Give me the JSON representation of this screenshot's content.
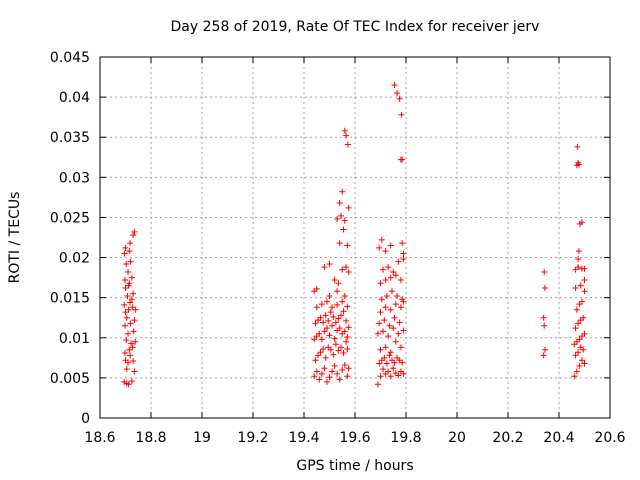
{
  "chart_data": {
    "type": "scatter",
    "title": "Day 258 of 2019, Rate Of TEC Index for receiver jerv",
    "xlabel": "GPS time / hours",
    "ylabel": "ROTI / TECUs",
    "xlim": [
      18.6,
      20.6
    ],
    "ylim": [
      0,
      0.045
    ],
    "xticks": [
      "18.6",
      "18.8",
      "19",
      "19.2",
      "19.4",
      "19.6",
      "19.8",
      "20",
      "20.2",
      "20.4",
      "20.6"
    ],
    "yticks": [
      "0",
      "0.005",
      "0.01",
      "0.015",
      "0.02",
      "0.025",
      "0.03",
      "0.035",
      "0.04",
      "0.045"
    ],
    "grid": true,
    "marker": "+",
    "color": "#ff0000",
    "series": [
      {
        "name": "ROTI",
        "points": [
          [
            18.695,
            0.0045
          ],
          [
            18.705,
            0.0043
          ],
          [
            18.712,
            0.0042
          ],
          [
            18.725,
            0.0046
          ],
          [
            18.735,
            0.0058
          ],
          [
            18.7,
            0.0072
          ],
          [
            18.71,
            0.0069
          ],
          [
            18.73,
            0.0071
          ],
          [
            18.698,
            0.0081
          ],
          [
            18.715,
            0.0085
          ],
          [
            18.728,
            0.0088
          ],
          [
            18.703,
            0.0097
          ],
          [
            18.722,
            0.0093
          ],
          [
            18.738,
            0.0095
          ],
          [
            18.71,
            0.0105
          ],
          [
            18.732,
            0.0108
          ],
          [
            18.698,
            0.0115
          ],
          [
            18.72,
            0.0118
          ],
          [
            18.705,
            0.0125
          ],
          [
            18.735,
            0.0122
          ],
          [
            18.7,
            0.0132
          ],
          [
            18.712,
            0.0135
          ],
          [
            18.728,
            0.0138
          ],
          [
            18.695,
            0.0141
          ],
          [
            18.718,
            0.0144
          ],
          [
            18.74,
            0.0135
          ],
          [
            18.708,
            0.0152
          ],
          [
            18.73,
            0.0155
          ],
          [
            18.7,
            0.0162
          ],
          [
            18.715,
            0.0168
          ],
          [
            18.698,
            0.0172
          ],
          [
            18.725,
            0.0175
          ],
          [
            18.71,
            0.0182
          ],
          [
            18.703,
            0.0192
          ],
          [
            18.72,
            0.0195
          ],
          [
            18.696,
            0.0205
          ],
          [
            18.715,
            0.0208
          ],
          [
            18.7,
            0.0212
          ],
          [
            18.718,
            0.0218
          ],
          [
            18.73,
            0.0228
          ],
          [
            18.735,
            0.0232
          ],
          [
            18.712,
            0.0165
          ],
          [
            18.725,
            0.0148
          ],
          [
            18.705,
            0.0061
          ],
          [
            18.718,
            0.0078
          ],
          [
            19.44,
            0.0052
          ],
          [
            19.45,
            0.0058
          ],
          [
            19.46,
            0.0048
          ],
          [
            19.47,
            0.0055
          ],
          [
            19.48,
            0.0062
          ],
          [
            19.49,
            0.0045
          ],
          [
            19.5,
            0.0051
          ],
          [
            19.51,
            0.0058
          ],
          [
            19.52,
            0.0065
          ],
          [
            19.53,
            0.0055
          ],
          [
            19.54,
            0.0048
          ],
          [
            19.55,
            0.006
          ],
          [
            19.56,
            0.0066
          ],
          [
            19.57,
            0.0052
          ],
          [
            19.575,
            0.0062
          ],
          [
            19.445,
            0.0072
          ],
          [
            19.455,
            0.0078
          ],
          [
            19.465,
            0.0082
          ],
          [
            19.475,
            0.0086
          ],
          [
            19.485,
            0.0075
          ],
          [
            19.495,
            0.0088
          ],
          [
            19.505,
            0.0085
          ],
          [
            19.515,
            0.0079
          ],
          [
            19.525,
            0.0092
          ],
          [
            19.535,
            0.0084
          ],
          [
            19.545,
            0.0088
          ],
          [
            19.555,
            0.0081
          ],
          [
            19.565,
            0.0095
          ],
          [
            19.57,
            0.0086
          ],
          [
            19.44,
            0.0098
          ],
          [
            19.45,
            0.0102
          ],
          [
            19.46,
            0.0105
          ],
          [
            19.47,
            0.0098
          ],
          [
            19.48,
            0.0108
          ],
          [
            19.49,
            0.0112
          ],
          [
            19.5,
            0.0103
          ],
          [
            19.51,
            0.0115
          ],
          [
            19.52,
            0.0099
          ],
          [
            19.53,
            0.0109
          ],
          [
            19.54,
            0.0112
          ],
          [
            19.55,
            0.0105
          ],
          [
            19.56,
            0.0108
          ],
          [
            19.57,
            0.0101
          ],
          [
            19.575,
            0.0113
          ],
          [
            19.445,
            0.0118
          ],
          [
            19.455,
            0.0122
          ],
          [
            19.465,
            0.0125
          ],
          [
            19.475,
            0.0119
          ],
          [
            19.485,
            0.0128
          ],
          [
            19.495,
            0.0121
          ],
          [
            19.505,
            0.0132
          ],
          [
            19.515,
            0.0126
          ],
          [
            19.525,
            0.0119
          ],
          [
            19.535,
            0.0124
          ],
          [
            19.545,
            0.0128
          ],
          [
            19.555,
            0.0133
          ],
          [
            19.565,
            0.0121
          ],
          [
            19.45,
            0.0138
          ],
          [
            19.47,
            0.0142
          ],
          [
            19.49,
            0.0145
          ],
          [
            19.51,
            0.0138
          ],
          [
            19.53,
            0.0141
          ],
          [
            19.55,
            0.0145
          ],
          [
            19.57,
            0.0139
          ],
          [
            19.44,
            0.0158
          ],
          [
            19.45,
            0.0161
          ],
          [
            19.5,
            0.0152
          ],
          [
            19.53,
            0.0158
          ],
          [
            19.56,
            0.0152
          ],
          [
            19.48,
            0.0188
          ],
          [
            19.5,
            0.0192
          ],
          [
            19.52,
            0.0172
          ],
          [
            19.535,
            0.0168
          ],
          [
            19.55,
            0.0185
          ],
          [
            19.565,
            0.0188
          ],
          [
            19.575,
            0.0182
          ],
          [
            19.54,
            0.0218
          ],
          [
            19.555,
            0.0235
          ],
          [
            19.57,
            0.0215
          ],
          [
            19.53,
            0.0248
          ],
          [
            19.545,
            0.0252
          ],
          [
            19.56,
            0.0246
          ],
          [
            19.575,
            0.0262
          ],
          [
            19.54,
            0.0268
          ],
          [
            19.55,
            0.0282
          ],
          [
            19.56,
            0.0358
          ],
          [
            19.565,
            0.0352
          ],
          [
            19.572,
            0.0341
          ],
          [
            19.69,
            0.0042
          ],
          [
            19.7,
            0.0052
          ],
          [
            19.71,
            0.0061
          ],
          [
            19.72,
            0.0055
          ],
          [
            19.73,
            0.0058
          ],
          [
            19.74,
            0.0052
          ],
          [
            19.75,
            0.0062
          ],
          [
            19.76,
            0.0056
          ],
          [
            19.77,
            0.0053
          ],
          [
            19.78,
            0.0058
          ],
          [
            19.79,
            0.0055
          ],
          [
            19.695,
            0.0068
          ],
          [
            19.705,
            0.0072
          ],
          [
            19.715,
            0.0075
          ],
          [
            19.725,
            0.0068
          ],
          [
            19.735,
            0.0078
          ],
          [
            19.745,
            0.0072
          ],
          [
            19.755,
            0.0069
          ],
          [
            19.765,
            0.0075
          ],
          [
            19.775,
            0.0072
          ],
          [
            19.785,
            0.0069
          ],
          [
            19.7,
            0.0085
          ],
          [
            19.72,
            0.0088
          ],
          [
            19.74,
            0.0082
          ],
          [
            19.76,
            0.0095
          ],
          [
            19.78,
            0.0088
          ],
          [
            19.69,
            0.0105
          ],
          [
            19.71,
            0.0108
          ],
          [
            19.73,
            0.0102
          ],
          [
            19.75,
            0.0112
          ],
          [
            19.77,
            0.0105
          ],
          [
            19.79,
            0.0109
          ],
          [
            19.695,
            0.0118
          ],
          [
            19.715,
            0.0122
          ],
          [
            19.735,
            0.0115
          ],
          [
            19.755,
            0.0125
          ],
          [
            19.775,
            0.0119
          ],
          [
            19.7,
            0.0132
          ],
          [
            19.72,
            0.0138
          ],
          [
            19.74,
            0.0135
          ],
          [
            19.76,
            0.0142
          ],
          [
            19.78,
            0.0138
          ],
          [
            19.79,
            0.0145
          ],
          [
            19.705,
            0.0148
          ],
          [
            19.725,
            0.0152
          ],
          [
            19.745,
            0.0158
          ],
          [
            19.765,
            0.0152
          ],
          [
            19.785,
            0.0148
          ],
          [
            19.7,
            0.0168
          ],
          [
            19.72,
            0.0172
          ],
          [
            19.74,
            0.0175
          ],
          [
            19.76,
            0.0178
          ],
          [
            19.78,
            0.0172
          ],
          [
            19.71,
            0.0185
          ],
          [
            19.73,
            0.0188
          ],
          [
            19.75,
            0.0182
          ],
          [
            19.77,
            0.0195
          ],
          [
            19.79,
            0.0198
          ],
          [
            19.695,
            0.0212
          ],
          [
            19.705,
            0.0222
          ],
          [
            19.72,
            0.0208
          ],
          [
            19.74,
            0.0215
          ],
          [
            19.785,
            0.0218
          ],
          [
            19.79,
            0.0205
          ],
          [
            19.78,
            0.0322
          ],
          [
            19.785,
            0.0322
          ],
          [
            19.782,
            0.0378
          ],
          [
            19.775,
            0.0398
          ],
          [
            19.765,
            0.0405
          ],
          [
            19.755,
            0.0415
          ],
          [
            20.34,
            0.0078
          ],
          [
            20.345,
            0.0085
          ],
          [
            20.342,
            0.0115
          ],
          [
            20.34,
            0.0125
          ],
          [
            20.345,
            0.0162
          ],
          [
            20.342,
            0.0182
          ],
          [
            20.46,
            0.0052
          ],
          [
            20.47,
            0.0058
          ],
          [
            20.48,
            0.0065
          ],
          [
            20.49,
            0.0072
          ],
          [
            20.5,
            0.0068
          ],
          [
            20.465,
            0.0078
          ],
          [
            20.475,
            0.0082
          ],
          [
            20.485,
            0.0088
          ],
          [
            20.495,
            0.0085
          ],
          [
            20.46,
            0.0092
          ],
          [
            20.47,
            0.0095
          ],
          [
            20.48,
            0.0098
          ],
          [
            20.49,
            0.0102
          ],
          [
            20.5,
            0.0105
          ],
          [
            20.465,
            0.0112
          ],
          [
            20.475,
            0.0118
          ],
          [
            20.485,
            0.0122
          ],
          [
            20.495,
            0.0125
          ],
          [
            20.47,
            0.0135
          ],
          [
            20.48,
            0.0142
          ],
          [
            20.49,
            0.0145
          ],
          [
            20.5,
            0.0158
          ],
          [
            20.465,
            0.0162
          ],
          [
            20.485,
            0.0165
          ],
          [
            20.5,
            0.0172
          ],
          [
            20.465,
            0.0185
          ],
          [
            20.475,
            0.0188
          ],
          [
            20.49,
            0.0186
          ],
          [
            20.5,
            0.0186
          ],
          [
            20.475,
            0.0198
          ],
          [
            20.478,
            0.0208
          ],
          [
            20.482,
            0.0242
          ],
          [
            20.49,
            0.0244
          ],
          [
            20.47,
            0.0315
          ],
          [
            20.475,
            0.0318
          ],
          [
            20.478,
            0.0316
          ],
          [
            20.472,
            0.0338
          ]
        ]
      }
    ]
  }
}
